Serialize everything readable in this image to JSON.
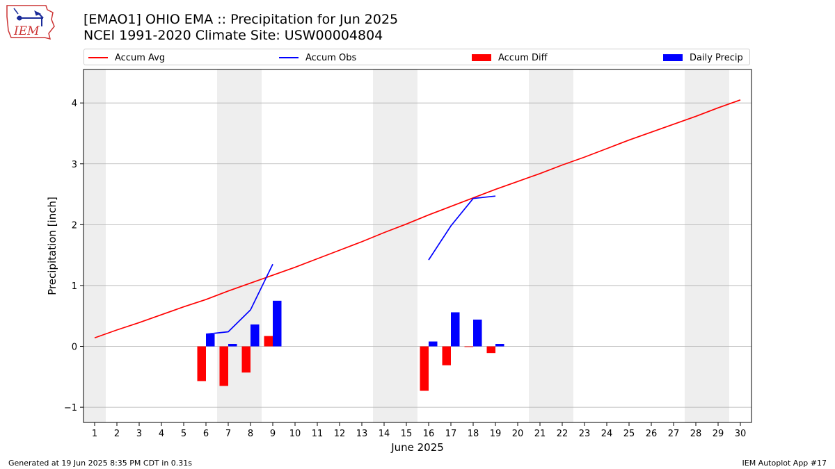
{
  "logo": {
    "text": "IEM",
    "icon": "iem-iowa-map-logo"
  },
  "title_line1": "[EMAO1] OHIO EMA :: Precipitation for Jun 2025",
  "title_line2": "NCEI 1991-2020 Climate Site: USW00004804",
  "legend": [
    {
      "label": "Accum Avg",
      "color": "#ff0000",
      "kind": "line"
    },
    {
      "label": "Accum Obs",
      "color": "#0000ff",
      "kind": "line"
    },
    {
      "label": "Accum Diff",
      "color": "#ff0000",
      "kind": "bar"
    },
    {
      "label": "Daily Precip",
      "color": "#0000ff",
      "kind": "bar"
    }
  ],
  "footer_left": "Generated at 19 Jun 2025 8:35 PM CDT in 0.31s",
  "footer_right": "IEM Autoplot App #17",
  "chart_data": {
    "type": "bar",
    "xlabel": "June 2025",
    "ylabel": "Precipitation [inch]",
    "xlim": [
      0.5,
      30.5
    ],
    "ylim": [
      -1.25,
      4.55
    ],
    "x_ticks": [
      1,
      2,
      3,
      4,
      5,
      6,
      7,
      8,
      9,
      10,
      11,
      12,
      13,
      14,
      15,
      16,
      17,
      18,
      19,
      20,
      21,
      22,
      23,
      24,
      25,
      26,
      27,
      28,
      29,
      30
    ],
    "y_ticks": [
      -1,
      0,
      1,
      2,
      3,
      4
    ],
    "grid": "horizontal",
    "weekend_shading": [
      [
        0.5,
        1.5
      ],
      [
        6.5,
        8.5
      ],
      [
        13.5,
        15.5
      ],
      [
        20.5,
        22.5
      ],
      [
        27.5,
        29.5
      ]
    ],
    "series": [
      {
        "name": "Accum Avg",
        "kind": "line",
        "color": "#ff0000",
        "x": [
          1,
          2,
          3,
          4,
          5,
          6,
          7,
          8,
          9,
          10,
          11,
          12,
          13,
          14,
          15,
          16,
          17,
          18,
          19,
          20,
          21,
          22,
          23,
          24,
          25,
          26,
          27,
          28,
          29,
          30
        ],
        "values": [
          0.14,
          0.27,
          0.39,
          0.52,
          0.65,
          0.77,
          0.91,
          1.04,
          1.17,
          1.3,
          1.44,
          1.58,
          1.72,
          1.87,
          2.01,
          2.16,
          2.3,
          2.44,
          2.58,
          2.71,
          2.84,
          2.98,
          3.11,
          3.25,
          3.39,
          3.52,
          3.65,
          3.78,
          3.92,
          4.05
        ]
      },
      {
        "name": "Accum Obs",
        "kind": "line",
        "color": "#0000ff",
        "x": [
          6,
          7,
          8,
          9,
          null,
          16,
          17,
          18,
          19
        ],
        "values": [
          0.2,
          0.24,
          0.6,
          1.35,
          null,
          1.42,
          1.98,
          2.43,
          2.47
        ]
      },
      {
        "name": "Accum Diff",
        "kind": "bar",
        "color": "#ff0000",
        "x": [
          6,
          7,
          8,
          9,
          16,
          17,
          18,
          19
        ],
        "values": [
          -0.57,
          -0.65,
          -0.43,
          0.17,
          -0.73,
          -0.31,
          -0.01,
          -0.11
        ]
      },
      {
        "name": "Daily Precip",
        "kind": "bar",
        "color": "#0000ff",
        "x": [
          6,
          7,
          8,
          9,
          16,
          17,
          18,
          19
        ],
        "values": [
          0.2,
          0.04,
          0.36,
          0.75,
          0.08,
          0.56,
          0.44,
          0.04
        ]
      }
    ]
  }
}
